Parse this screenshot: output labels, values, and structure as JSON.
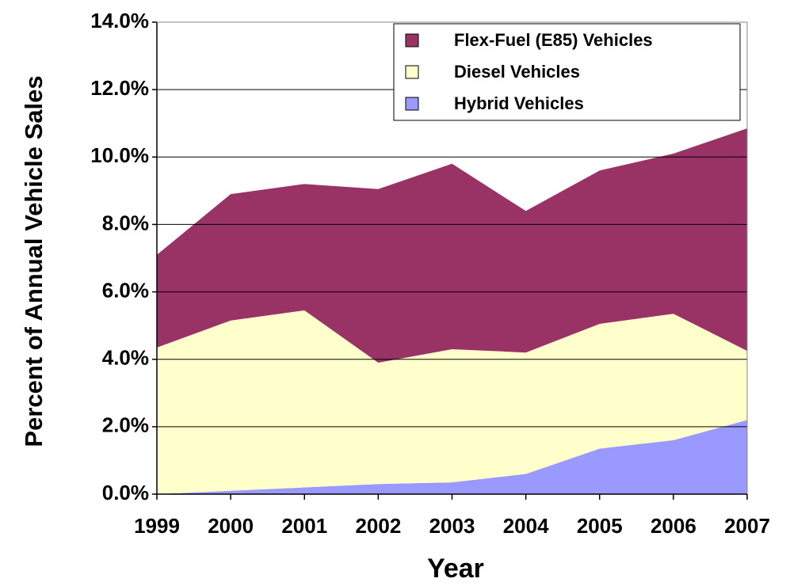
{
  "chart_data": {
    "type": "stacked_area",
    "x_label": "Year",
    "y_label": "Percent of Annual Vehicle Sales",
    "categories": [
      "1999",
      "2000",
      "2001",
      "2002",
      "2003",
      "2004",
      "2005",
      "2006",
      "2007"
    ],
    "series": [
      {
        "name": "Flex-Fuel (E85) Vehicles",
        "color": "#993366",
        "values": [
          2.75,
          3.75,
          3.75,
          5.15,
          5.5,
          4.2,
          4.55,
          4.75,
          6.6
        ]
      },
      {
        "name": "Diesel Vehicles",
        "color": "#ffffcc",
        "values": [
          4.35,
          5.05,
          5.25,
          3.6,
          3.95,
          3.6,
          3.7,
          3.75,
          2.05
        ]
      },
      {
        "name": "Hybrid Vehicles",
        "color": "#9999ff",
        "values": [
          0.0,
          0.1,
          0.2,
          0.3,
          0.35,
          0.6,
          1.35,
          1.6,
          2.2
        ]
      }
    ],
    "ylim": [
      0,
      14
    ],
    "yticks": [
      {
        "value": 0,
        "label": "0.0%"
      },
      {
        "value": 2,
        "label": "2.0%"
      },
      {
        "value": 4,
        "label": "4.0%"
      },
      {
        "value": 6,
        "label": "6.0%"
      },
      {
        "value": 8,
        "label": "8.0%"
      },
      {
        "value": 10,
        "label": "10.0%"
      },
      {
        "value": 12,
        "label": "12.0%"
      },
      {
        "value": 14,
        "label": "14.0%"
      }
    ],
    "grid": true,
    "legend": "upper right"
  }
}
